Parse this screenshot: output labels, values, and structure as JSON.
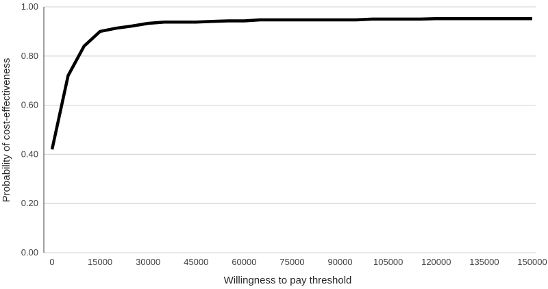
{
  "chart_data": {
    "type": "line",
    "title": "",
    "xlabel": "Willingness to pay threshold",
    "ylabel": "Probability of cost-effectiveness",
    "xlim": [
      0,
      150000
    ],
    "ylim": [
      0,
      1
    ],
    "xticks": [
      "0",
      "15000",
      "30000",
      "45000",
      "60000",
      "75000",
      "90000",
      "105000",
      "120000",
      "135000",
      "150000"
    ],
    "yticks": [
      "0.00",
      "0.20",
      "0.40",
      "0.60",
      "0.80",
      "1.00"
    ],
    "grid": "horizontal",
    "line_color": "#000000",
    "grid_color": "#d9d9d9",
    "x": [
      0,
      5000,
      10000,
      15000,
      20000,
      25000,
      30000,
      35000,
      40000,
      45000,
      50000,
      55000,
      60000,
      65000,
      70000,
      75000,
      80000,
      85000,
      90000,
      95000,
      100000,
      105000,
      110000,
      115000,
      120000,
      125000,
      130000,
      135000,
      140000,
      145000,
      150000
    ],
    "values": [
      0.42,
      0.72,
      0.84,
      0.9,
      0.913,
      0.922,
      0.933,
      0.938,
      0.938,
      0.938,
      0.941,
      0.943,
      0.943,
      0.947,
      0.947,
      0.947,
      0.947,
      0.947,
      0.947,
      0.947,
      0.95,
      0.95,
      0.95,
      0.95,
      0.952,
      0.952,
      0.952,
      0.952,
      0.952,
      0.952,
      0.952
    ]
  }
}
